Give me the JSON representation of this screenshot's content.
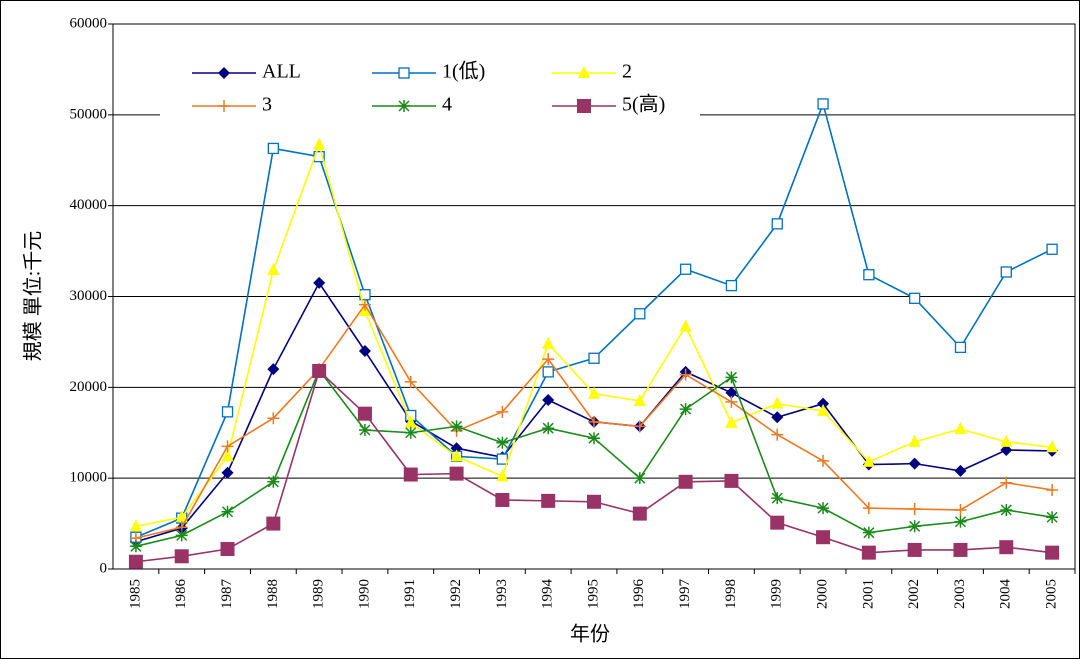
{
  "chart_data": {
    "type": "line",
    "y_label": "規模 單位:千元",
    "x_label": "年份",
    "categories": [
      "1985",
      "1986",
      "1987",
      "1988",
      "1989",
      "1990",
      "1991",
      "1992",
      "1993",
      "1994",
      "1995",
      "1996",
      "1997",
      "1998",
      "1999",
      "2000",
      "2001",
      "2002",
      "2003",
      "2004",
      "2005"
    ],
    "ylim": [
      0,
      60000
    ],
    "yticks": [
      0,
      10000,
      20000,
      30000,
      40000,
      50000,
      60000
    ],
    "grid": true,
    "legend": "upper left",
    "series": [
      {
        "name": "ALL",
        "color": "#000080",
        "marker": "diamond",
        "values": [
          3000,
          4500,
          10600,
          22000,
          31500,
          24000,
          16300,
          13300,
          12300,
          18600,
          16200,
          15700,
          21700,
          19400,
          16700,
          18200,
          11500,
          11600,
          10800,
          13100,
          13000
        ]
      },
      {
        "name": "1(低)",
        "color": "#0070c0",
        "marker": "hollow-square",
        "values": [
          3500,
          5600,
          17300,
          46300,
          45400,
          30200,
          16900,
          12400,
          12100,
          21700,
          23200,
          28100,
          33000,
          31200,
          38000,
          51200,
          32400,
          29800,
          24400,
          32700,
          35200
        ]
      },
      {
        "name": "2",
        "color": "#ffff00",
        "marker": "triangle",
        "values": [
          4700,
          5700,
          12400,
          32900,
          46700,
          28400,
          16100,
          12400,
          10200,
          24800,
          19300,
          18500,
          26700,
          16100,
          18200,
          17400,
          11800,
          14000,
          15400,
          14000,
          13400
        ]
      },
      {
        "name": "3",
        "color": "#f07820",
        "marker": "plus",
        "values": [
          3400,
          4600,
          13500,
          16600,
          22000,
          29100,
          20600,
          15200,
          17300,
          23100,
          16200,
          15700,
          21400,
          18400,
          14800,
          11900,
          6700,
          6600,
          6500,
          9500,
          8700
        ]
      },
      {
        "name": "4",
        "color": "#1a8a1a",
        "marker": "asterisk",
        "values": [
          2500,
          3700,
          6300,
          9600,
          21900,
          15300,
          15000,
          15700,
          13900,
          15500,
          14400,
          10000,
          17600,
          21100,
          7800,
          6700,
          4000,
          4700,
          5200,
          6500,
          5700
        ]
      },
      {
        "name": "5(高)",
        "color": "#993366",
        "marker": "square",
        "values": [
          800,
          1400,
          2200,
          5000,
          21800,
          17100,
          10400,
          10500,
          7600,
          7500,
          7400,
          6100,
          9600,
          9700,
          5100,
          3500,
          1800,
          2100,
          2100,
          2400,
          1800
        ]
      }
    ]
  }
}
